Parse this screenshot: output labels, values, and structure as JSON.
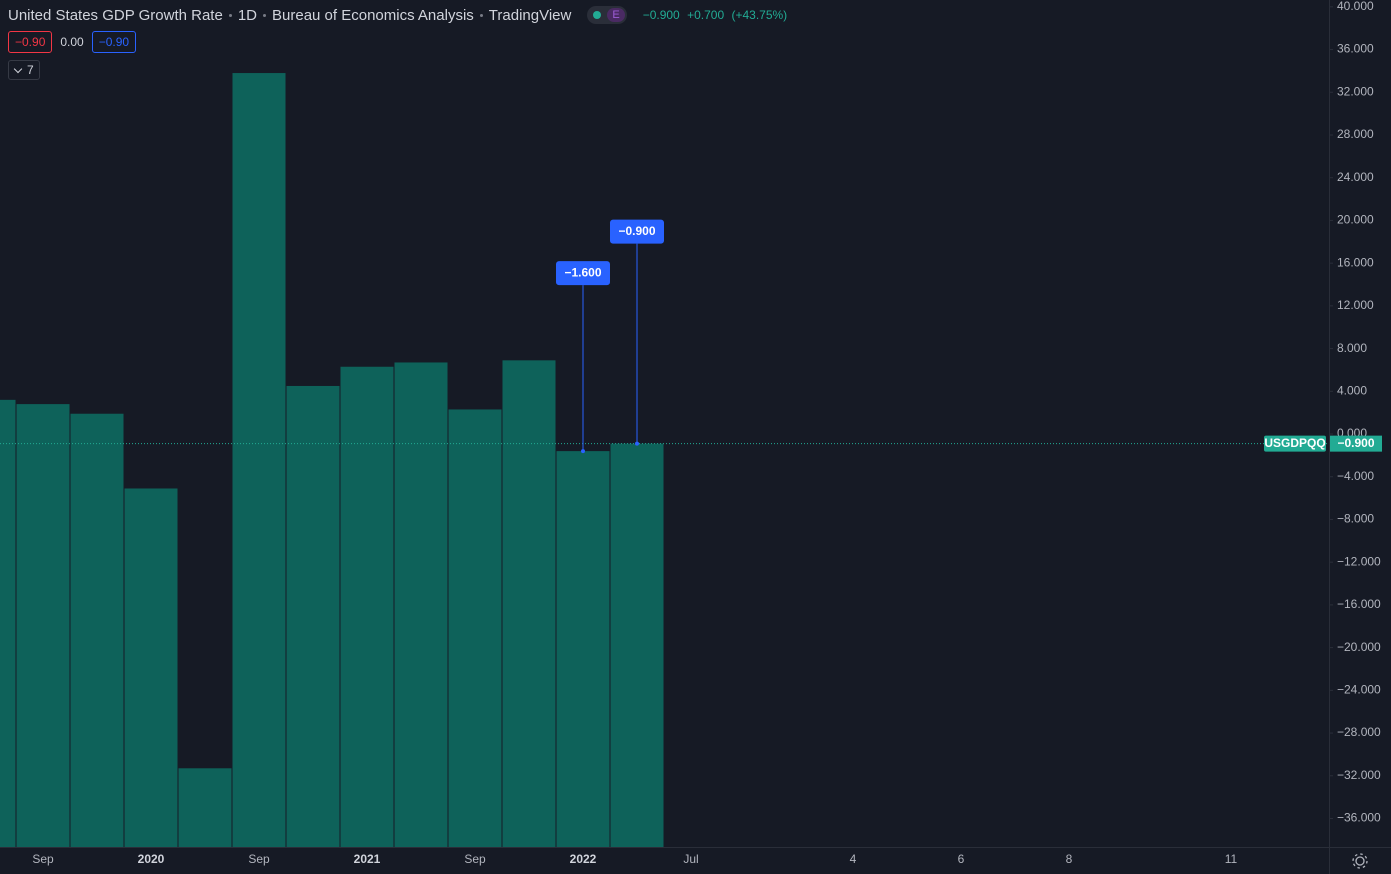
{
  "chart_data": {
    "type": "bar",
    "title": "United States GDP Growth Rate",
    "interval": "1D",
    "source": "Bureau of Economics Analysis",
    "publisher": "TradingView",
    "events_badge": "E",
    "status": {
      "value": "−0.900",
      "change": "+0.700",
      "percent": "(+43.75%)"
    },
    "legend": {
      "values": [
        "−0.90",
        "0.00",
        "−0.90"
      ],
      "indicator_count": 7
    },
    "symbol": "USGDPQQ",
    "last_label": "−0.900",
    "categories": [
      null,
      "Sep",
      null,
      "2020",
      null,
      "Sep",
      null,
      "2021",
      null,
      "Sep",
      null,
      "2022",
      null,
      "Jul",
      null,
      null,
      "4",
      null,
      "6",
      null,
      "8",
      null,
      null,
      "11"
    ],
    "values": [
      3.2,
      2.8,
      1.9,
      -5.1,
      -31.3,
      33.8,
      4.5,
      6.3,
      6.7,
      2.3,
      6.9,
      -1.6,
      -0.9,
      null,
      null,
      null,
      null,
      null,
      null,
      null,
      null,
      null,
      null,
      null
    ],
    "value_labels": [
      null,
      null,
      null,
      null,
      null,
      null,
      null,
      null,
      null,
      null,
      null,
      "−1.600",
      "−0.900",
      null,
      null,
      null,
      null,
      null,
      null,
      null,
      null,
      null,
      null,
      null
    ],
    "color": "#0e625a",
    "ylim": [
      -38.67,
      40.64
    ],
    "yticks": [
      {
        "value": 40,
        "label": "40.000"
      },
      {
        "value": 36,
        "label": "36.000"
      },
      {
        "value": 32,
        "label": "32.000"
      },
      {
        "value": 28,
        "label": "28.000"
      },
      {
        "value": 24,
        "label": "24.000"
      },
      {
        "value": 20,
        "label": "20.000"
      },
      {
        "value": 16,
        "label": "16.000"
      },
      {
        "value": 12,
        "label": "12.000"
      },
      {
        "value": 8,
        "label": "8.000"
      },
      {
        "value": 4,
        "label": "4.000"
      },
      {
        "value": 0,
        "label": "0.000"
      },
      {
        "value": -4,
        "label": "−4.000"
      },
      {
        "value": -8,
        "label": "−8.000"
      },
      {
        "value": -12,
        "label": "−12.000"
      },
      {
        "value": -16,
        "label": "−16.000"
      },
      {
        "value": -20,
        "label": "−20.000"
      },
      {
        "value": -24,
        "label": "−24.000"
      },
      {
        "value": -28,
        "label": "−28.000"
      },
      {
        "value": -32,
        "label": "−32.000"
      },
      {
        "value": -36,
        "label": "−36.000"
      }
    ],
    "grid": false
  }
}
